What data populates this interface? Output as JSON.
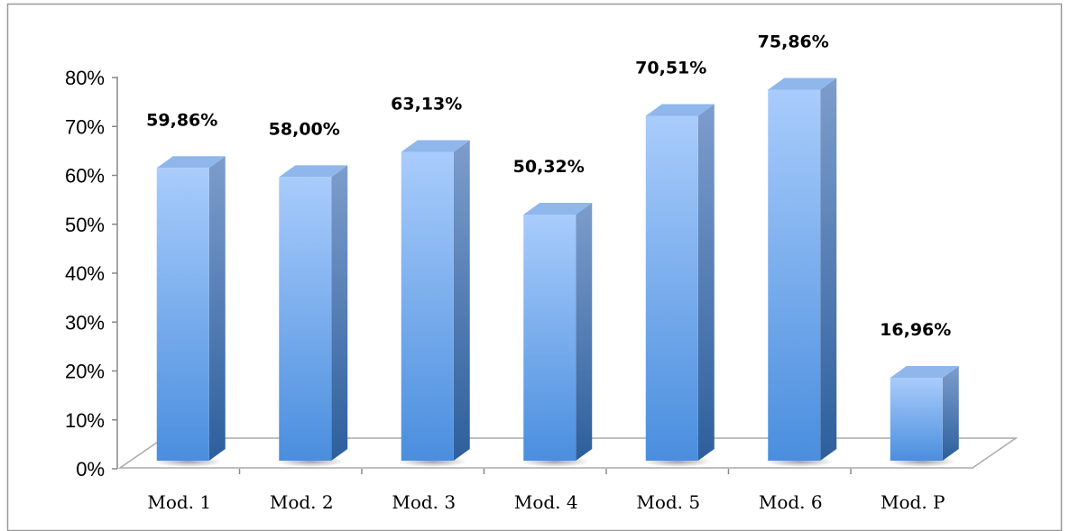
{
  "chart_data": {
    "type": "bar",
    "style": "3d-column",
    "categories": [
      "Mod. 1",
      "Mod. 2",
      "Mod. 3",
      "Mod. 4",
      "Mod. 5",
      "Mod. 6",
      "Mod. P"
    ],
    "values": [
      59.86,
      58.0,
      63.13,
      50.32,
      70.51,
      75.86,
      16.96
    ],
    "data_labels": [
      "59,86%",
      "58,00%",
      "63,13%",
      "50,32%",
      "70,51%",
      "75,86%",
      "16,96%"
    ],
    "title": "",
    "xlabel": "",
    "ylabel": "",
    "ylim": [
      0,
      80
    ],
    "yticks": [
      0,
      10,
      20,
      30,
      40,
      50,
      60,
      70,
      80
    ],
    "ytick_labels": [
      "0%",
      "10%",
      "20%",
      "30%",
      "40%",
      "50%",
      "60%",
      "70%",
      "80%"
    ],
    "grid": false,
    "legend": "none",
    "colors": {
      "bar_front_top": "#a9ccfb",
      "bar_front_bottom": "#4a8ede",
      "bar_side_top": "#7d9dcc",
      "bar_side_bottom": "#2d5f9c",
      "bar_top": "#8fb7ec",
      "floor": "#ffffff",
      "axis": "#888888",
      "frame": "#999999"
    }
  }
}
